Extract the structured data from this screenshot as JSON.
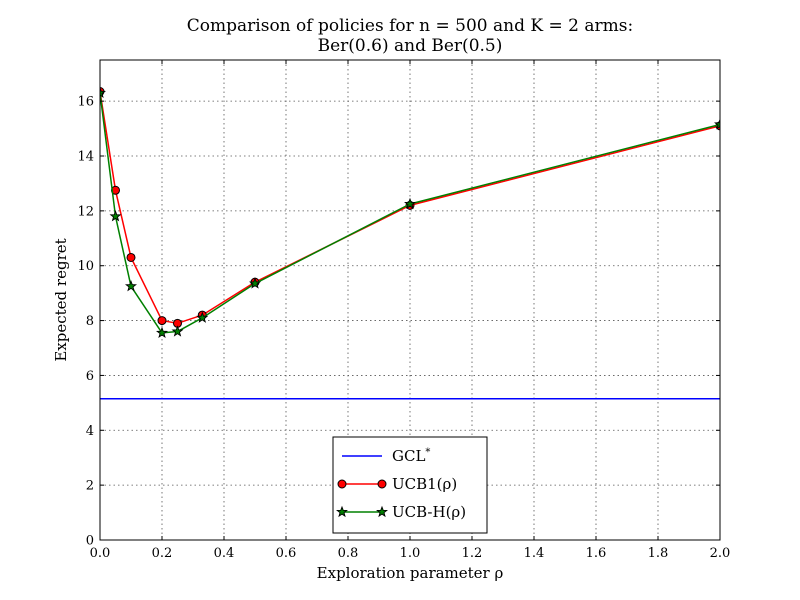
{
  "chart_data": {
    "type": "line",
    "title": "Comparison of policies for n = 500 and K = 2 arms:",
    "subtitle": "Ber(0.6) and Ber(0.5)",
    "xlabel": "Exploration parameter ρ",
    "ylabel": "Expected regret",
    "xlim": [
      0,
      2
    ],
    "ylim": [
      0,
      17.5
    ],
    "grid": true,
    "legend_position": "lower-center",
    "xticks": [
      "0.0",
      "0.2",
      "0.4",
      "0.6",
      "0.8",
      "1.0",
      "1.2",
      "1.4",
      "1.6",
      "1.8",
      "2.0"
    ],
    "yticks": [
      "0",
      "2",
      "4",
      "6",
      "8",
      "10",
      "12",
      "14",
      "16"
    ],
    "series": [
      {
        "name": "GCL*",
        "name_main": "GCL",
        "name_sup": "*",
        "color": "#0000ff",
        "marker": "none",
        "x": [
          0,
          2
        ],
        "y": [
          5.15,
          5.15
        ]
      },
      {
        "name": "UCB1(ρ)",
        "color": "#ff0000",
        "marker": "circle",
        "x": [
          0.0,
          0.05,
          0.1,
          0.2,
          0.25,
          0.33,
          0.5,
          1.0,
          2.0
        ],
        "y": [
          16.35,
          12.75,
          10.3,
          8.0,
          7.9,
          8.2,
          9.4,
          12.2,
          15.1
        ]
      },
      {
        "name": "UCB-H(ρ)",
        "color": "#008000",
        "marker": "star",
        "x": [
          0.0,
          0.05,
          0.1,
          0.2,
          0.25,
          0.33,
          0.5,
          1.0,
          2.0
        ],
        "y": [
          16.3,
          11.8,
          9.25,
          7.55,
          7.6,
          8.1,
          9.35,
          12.25,
          15.15
        ]
      }
    ]
  }
}
